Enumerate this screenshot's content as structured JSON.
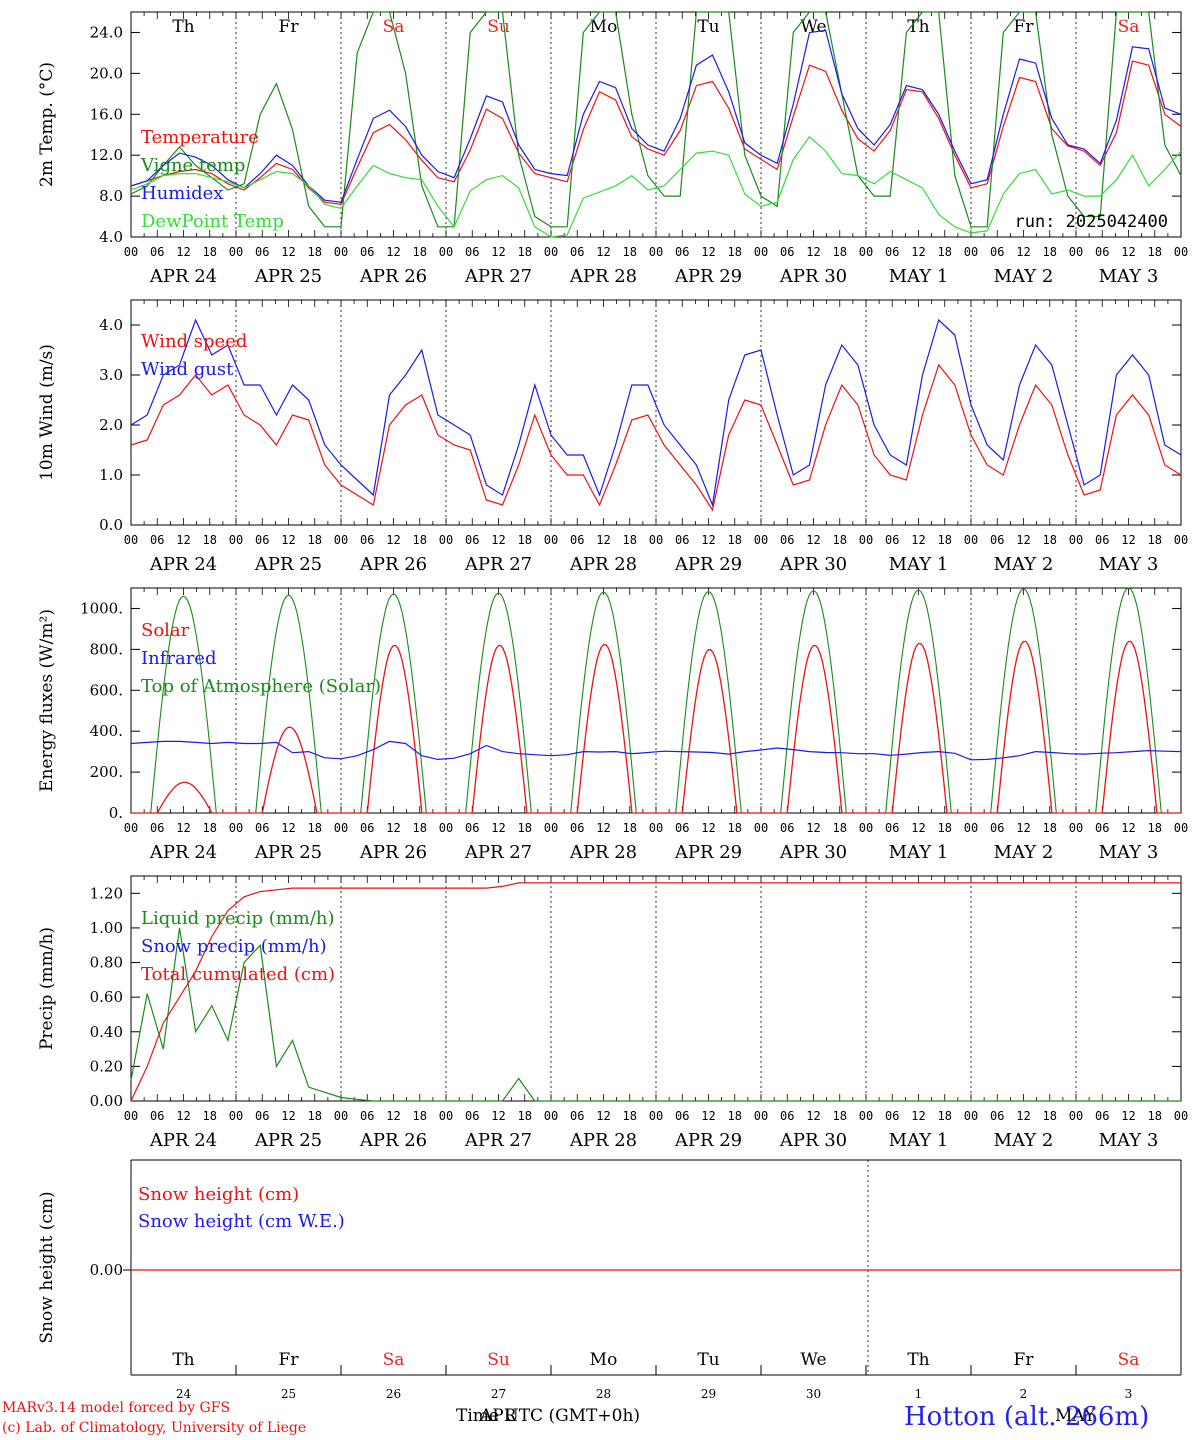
{
  "footer": {
    "credit_line1": "MARv3.14 model forced by GFS",
    "credit_line2": "(c) Lab. of Climatology, University of Liege",
    "station": "Hotton (alt. 266m)",
    "xlabel": "Time UTC (GMT+0h)",
    "month_overlap_1": "APR",
    "month_overlap_2": "MAY"
  },
  "days": [
    "APR 24",
    "APR 25",
    "APR 26",
    "APR 27",
    "APR 28",
    "APR 29",
    "APR 30",
    "MAY  1",
    "MAY  2",
    "MAY  3"
  ],
  "hour_ticks": [
    "00",
    "06",
    "12",
    "18"
  ],
  "weekdays": [
    {
      "label": "Th",
      "color": "#000000"
    },
    {
      "label": "Fr",
      "color": "#000000"
    },
    {
      "label": "Sa",
      "color": "#ee2222"
    },
    {
      "label": "Su",
      "color": "#ee2222"
    },
    {
      "label": "Mo",
      "color": "#000000"
    },
    {
      "label": "Tu",
      "color": "#000000"
    },
    {
      "label": "We",
      "color": "#000000"
    },
    {
      "label": "Th",
      "color": "#000000"
    },
    {
      "label": "Fr",
      "color": "#000000"
    },
    {
      "label": "Sa",
      "color": "#ee2222"
    }
  ],
  "snow_day_numbers": [
    "24",
    "25",
    "26",
    "27",
    "28",
    "29",
    "30",
    "1",
    "2",
    "3"
  ],
  "colors": {
    "red": "#ee1111",
    "green": "#1a8a1a",
    "blue": "#1a1aee",
    "lightgreen": "#33dd33"
  },
  "chart_data": [
    {
      "type": "line",
      "ylabel": "2m Temp. (°C)",
      "ylim": [
        4,
        26
      ],
      "yticks": [
        "4.0",
        "8.0",
        "12.0",
        "16.0",
        "20.0",
        "24.0"
      ],
      "run_label": "run: 2025042400",
      "x_days": 10,
      "series": [
        {
          "name": "Temperature",
          "color": "red",
          "values": [
            9,
            9.5,
            10,
            10.4,
            10.6,
            10.2,
            9.2,
            8.6,
            9.8,
            11.2,
            10.6,
            8.8,
            7.4,
            7.2,
            10.8,
            14.2,
            15,
            13.5,
            11.5,
            9.8,
            9.4,
            12.5,
            16.5,
            15.6,
            12.2,
            10.2,
            9.8,
            9.4,
            14.5,
            18.2,
            17.4,
            13.8,
            12.6,
            12,
            14.4,
            18.8,
            19.2,
            16.6,
            12.6,
            11.6,
            10.6,
            15.8,
            20.8,
            20.2,
            16.4,
            13.6,
            12.4,
            14.4,
            18.4,
            18.2,
            15.6,
            12,
            8.8,
            9.2,
            14.8,
            19.6,
            19.2,
            14.6,
            12.9,
            12.4,
            11,
            14.2,
            21.2,
            20.8,
            16,
            14.8
          ]
        },
        {
          "name": "Vigne temp",
          "color": "green",
          "values": [
            8.2,
            9,
            11,
            12.8,
            11,
            9.8,
            8.6,
            9.2,
            16,
            19,
            14.5,
            7,
            5,
            5,
            22,
            26,
            26,
            20,
            9,
            5,
            5,
            24,
            26,
            26,
            12,
            6,
            5,
            5,
            24,
            26,
            26,
            16,
            10,
            8,
            8,
            26,
            26,
            26,
            12,
            8,
            7,
            24,
            26,
            26,
            18,
            10,
            8,
            8,
            24,
            26,
            26,
            10,
            5,
            5,
            24,
            26,
            26,
            14,
            8,
            6,
            6,
            26,
            26,
            26,
            13,
            10
          ]
        },
        {
          "name": "Humidex",
          "color": "blue",
          "values": [
            9,
            9.5,
            11,
            12.2,
            11.8,
            11,
            9.6,
            8.8,
            10.2,
            12,
            11,
            9,
            7.6,
            7.4,
            11.6,
            15.6,
            16.4,
            14.8,
            12,
            10.4,
            9.8,
            13.6,
            17.8,
            17.2,
            13,
            10.6,
            10.2,
            10,
            16,
            19.2,
            18.6,
            14.6,
            13,
            12.4,
            15.6,
            20.8,
            21.8,
            18.2,
            13.2,
            12,
            11.2,
            17,
            24,
            24.2,
            18,
            14.6,
            13,
            15,
            18.8,
            18.4,
            16,
            12.4,
            9.2,
            9.6,
            16,
            21.4,
            21,
            15.6,
            13,
            12.6,
            11.2,
            15.4,
            22.6,
            22.4,
            16.6,
            16
          ]
        },
        {
          "name": "DewPoint Temp",
          "color": "lightgreen",
          "values": [
            8.6,
            9.2,
            10,
            10.2,
            10.2,
            9.8,
            9.4,
            8.8,
            9.6,
            10.4,
            10.2,
            9,
            7.2,
            6.8,
            9,
            11,
            10.2,
            9.8,
            9.6,
            7,
            5,
            8.5,
            9.6,
            10,
            8.8,
            5,
            4,
            4.2,
            7.8,
            8.4,
            9,
            10,
            8.6,
            9,
            10.6,
            12.2,
            12.4,
            12,
            8.2,
            7,
            7.4,
            11.6,
            13.8,
            12.4,
            10.2,
            10,
            9.2,
            10.4,
            9.6,
            8.8,
            6.2,
            5,
            4.4,
            4.6,
            8.2,
            10.2,
            10.6,
            8.2,
            8.6,
            8,
            8,
            9.6,
            12,
            9,
            10.6,
            12.4
          ]
        }
      ]
    },
    {
      "type": "line",
      "ylabel": "10m Wind (m/s)",
      "ylim": [
        0,
        4.5
      ],
      "yticks": [
        "0.0",
        "1.0",
        "2.0",
        "3.0",
        "4.0"
      ],
      "series": [
        {
          "name": "Wind speed",
          "color": "red",
          "values": [
            1.6,
            1.7,
            2.4,
            2.6,
            3,
            2.6,
            2.8,
            2.2,
            2,
            1.6,
            2.2,
            2.1,
            1.2,
            0.8,
            0.6,
            0.4,
            2,
            2.4,
            2.6,
            1.8,
            1.6,
            1.5,
            0.5,
            0.4,
            1.2,
            2.2,
            1.4,
            1,
            1,
            0.4,
            1.2,
            2.1,
            2.2,
            1.6,
            1.2,
            0.8,
            0.3,
            1.8,
            2.5,
            2.4,
            1.6,
            0.8,
            0.9,
            2,
            2.8,
            2.4,
            1.4,
            1,
            0.9,
            2.2,
            3.2,
            2.8,
            1.8,
            1.2,
            1,
            2,
            2.8,
            2.4,
            1.4,
            0.6,
            0.7,
            2.2,
            2.6,
            2.2,
            1.2,
            1
          ]
        },
        {
          "name": "Wind gust",
          "color": "blue",
          "values": [
            2,
            2.2,
            3,
            3.2,
            4.1,
            3.4,
            3.6,
            2.8,
            2.8,
            2.2,
            2.8,
            2.5,
            1.6,
            1.2,
            0.9,
            0.6,
            2.6,
            3,
            3.5,
            2.2,
            2,
            1.8,
            0.8,
            0.6,
            1.6,
            2.8,
            1.8,
            1.4,
            1.4,
            0.6,
            1.6,
            2.8,
            2.8,
            2,
            1.6,
            1.2,
            0.4,
            2.5,
            3.4,
            3.5,
            2.2,
            1,
            1.2,
            2.8,
            3.6,
            3.2,
            2,
            1.4,
            1.2,
            3,
            4.1,
            3.8,
            2.4,
            1.6,
            1.3,
            2.8,
            3.6,
            3.2,
            2,
            0.8,
            1,
            3,
            3.4,
            3,
            1.6,
            1.4
          ]
        }
      ]
    },
    {
      "type": "line",
      "ylabel": "Energy fluxes (W/m²)",
      "ylim": [
        0,
        1100
      ],
      "yticks": [
        "0.",
        "200.",
        "400.",
        "600.",
        "800.",
        "1000."
      ],
      "series": [
        {
          "name": "Solar",
          "color": "red",
          "peaks": [
            150,
            420,
            820,
            820,
            825,
            800,
            820,
            830,
            840,
            840
          ]
        },
        {
          "name": "Infrared",
          "color": "blue",
          "values": [
            340,
            345,
            350,
            350,
            345,
            340,
            345,
            340,
            340,
            345,
            295,
            300,
            270,
            265,
            280,
            310,
            350,
            340,
            280,
            262,
            268,
            290,
            330,
            300,
            290,
            285,
            280,
            285,
            300,
            298,
            300,
            290,
            296,
            302,
            300,
            298,
            296,
            288,
            300,
            308,
            318,
            310,
            300,
            296,
            295,
            290,
            290,
            282,
            288,
            296,
            300,
            292,
            260,
            262,
            270,
            280,
            300,
            296,
            290,
            288,
            292,
            295,
            300,
            305,
            302,
            300
          ]
        },
        {
          "name": "Top of Atmosphere (Solar)",
          "color": "green",
          "peaks": [
            1060,
            1065,
            1070,
            1075,
            1080,
            1083,
            1087,
            1090,
            1095,
            1100
          ]
        }
      ]
    },
    {
      "type": "line",
      "ylabel": "Precip (mm/h)",
      "ylim": [
        0,
        1.3
      ],
      "yticks": [
        "0.00",
        "0.20",
        "0.40",
        "0.60",
        "0.80",
        "1.00",
        "1.20"
      ],
      "series": [
        {
          "name": "Liquid precip (mm/h)",
          "color": "green",
          "values": [
            0.12,
            0.62,
            0.3,
            1.0,
            0.4,
            0.55,
            0.35,
            0.8,
            0.9,
            0.2,
            0.35,
            0.08,
            0.05,
            0.02,
            0.01,
            0,
            0,
            0,
            0,
            0,
            0,
            0,
            0,
            0,
            0.13,
            0,
            0,
            0,
            0,
            0,
            0,
            0,
            0,
            0,
            0,
            0,
            0,
            0,
            0,
            0,
            0,
            0,
            0,
            0,
            0,
            0,
            0,
            0,
            0,
            0,
            0,
            0,
            0,
            0,
            0,
            0,
            0,
            0,
            0,
            0,
            0,
            0,
            0,
            0,
            0,
            0
          ]
        },
        {
          "name": "Snow precip (mm/h)",
          "color": "blue",
          "values": []
        },
        {
          "name": "Total cumulated (cm)",
          "color": "red",
          "values": [
            0,
            0.2,
            0.45,
            0.6,
            0.75,
            0.95,
            1.1,
            1.18,
            1.21,
            1.22,
            1.23,
            1.23,
            1.23,
            1.23,
            1.23,
            1.23,
            1.23,
            1.23,
            1.23,
            1.23,
            1.23,
            1.23,
            1.23,
            1.24,
            1.26,
            1.26,
            1.26,
            1.26,
            1.26,
            1.26,
            1.26,
            1.26,
            1.26,
            1.26,
            1.26,
            1.26,
            1.26,
            1.26,
            1.26,
            1.26,
            1.26,
            1.26,
            1.26,
            1.26,
            1.26,
            1.26,
            1.26,
            1.26,
            1.26,
            1.26,
            1.26,
            1.26,
            1.26,
            1.26,
            1.26,
            1.26,
            1.26,
            1.26,
            1.26,
            1.26,
            1.26,
            1.26,
            1.26,
            1.26,
            1.26,
            1.26
          ]
        }
      ]
    },
    {
      "type": "line",
      "ylabel": "Snow height (cm)",
      "yticks": [
        "0.00"
      ],
      "series": [
        {
          "name": "Snow height (cm)",
          "color": "red",
          "values": [
            0,
            0
          ]
        },
        {
          "name": "Snow height (cm W.E.)",
          "color": "blue",
          "values": []
        }
      ]
    }
  ]
}
